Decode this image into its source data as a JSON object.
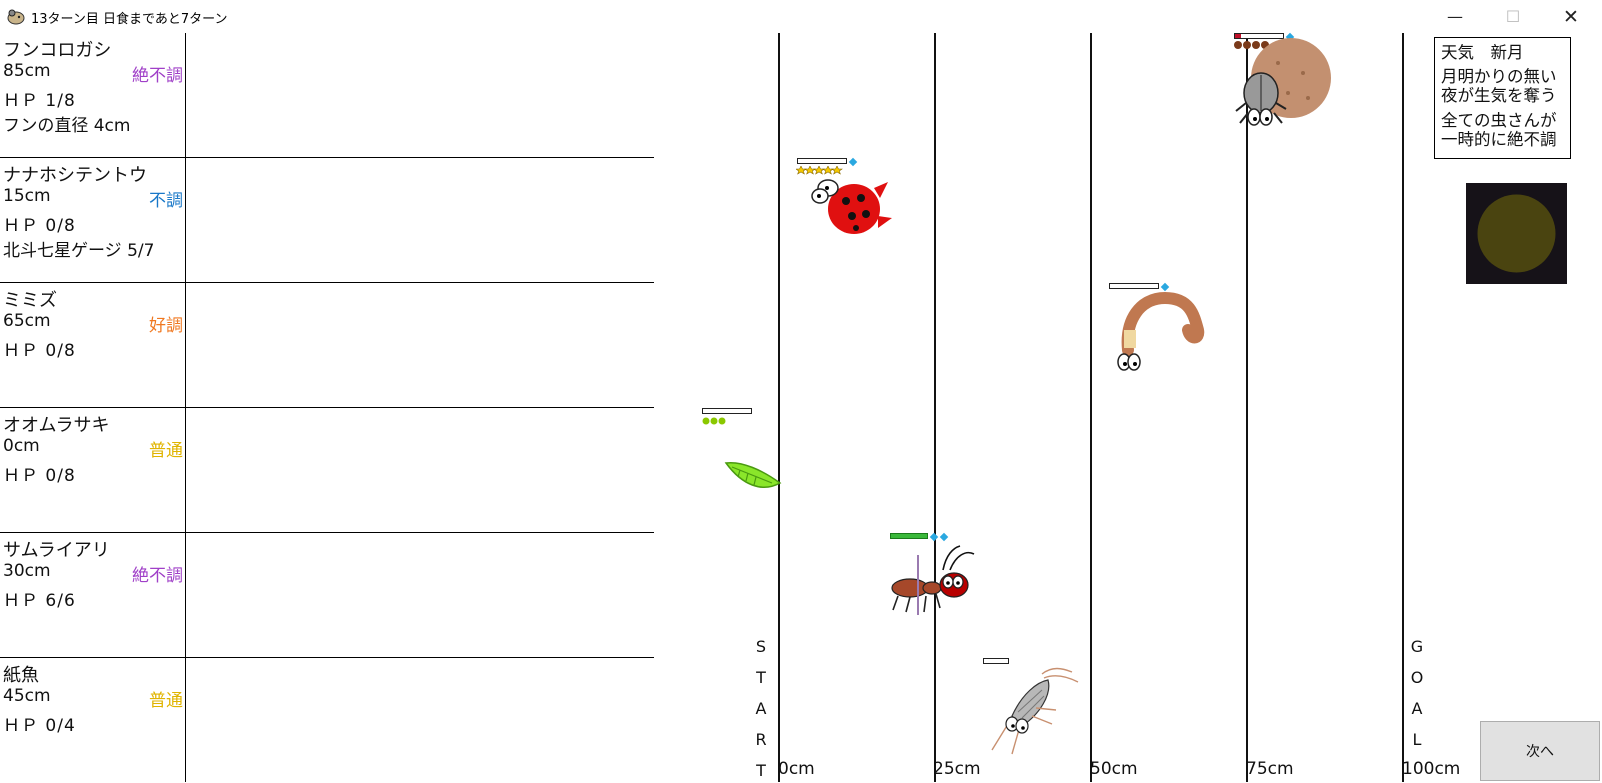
{
  "window": {
    "title": "13ターン目 日食まであと7ターン",
    "minimize": "—",
    "maximize": "☐",
    "close": "✕"
  },
  "bugs": [
    {
      "name": "フンコロガシ",
      "distance": "85cm",
      "condition": "絶不調",
      "condition_color": "#a040c8",
      "hp": "ＨＰ 1/8",
      "extra": "フンの直径 4cm"
    },
    {
      "name": "ナナホシテントウ",
      "distance": "15cm",
      "condition": "不調",
      "condition_color": "#1a78c8",
      "hp": "ＨＰ 0/8",
      "extra": "北斗七星ゲージ 5/7"
    },
    {
      "name": "ミミズ",
      "distance": "65cm",
      "condition": "好調",
      "condition_color": "#f07820",
      "hp": "ＨＰ 0/8",
      "extra": ""
    },
    {
      "name": "オオムラサキ",
      "distance": "0cm",
      "condition": "普通",
      "condition_color": "#e0b400",
      "hp": "ＨＰ 0/8",
      "extra": ""
    },
    {
      "name": "サムライアリ",
      "distance": "30cm",
      "condition": "絶不調",
      "condition_color": "#a040c8",
      "hp": "ＨＰ 6/6",
      "extra": ""
    },
    {
      "name": "紙魚",
      "distance": "45cm",
      "condition": "普通",
      "condition_color": "#e0b400",
      "hp": "ＨＰ 0/4",
      "extra": ""
    }
  ],
  "track": {
    "marks": [
      "0cm",
      "25cm",
      "50cm",
      "75cm",
      "100cm"
    ],
    "start_letters": [
      "S",
      "T",
      "A",
      "R",
      "T"
    ],
    "goal_letters": [
      "G",
      "O",
      "A",
      "L"
    ]
  },
  "weather": {
    "line1": "天気　新月",
    "line2": "月明かりの無い",
    "line3": "夜が生気を奪う",
    "line4": "全ての虫さんが",
    "line5": "一時的に絶不調",
    "moon_color": "#4a4410"
  },
  "next_button": "次へ",
  "racers": [
    {
      "name": "フンコロガシ",
      "hp_fraction": 0.125,
      "gems": 1
    },
    {
      "name": "ナナホシテントウ",
      "hp_fraction": 0,
      "gems": 1
    },
    {
      "name": "ミミズ",
      "hp_fraction": 0,
      "gems": 1
    },
    {
      "name": "オオムラサキ",
      "hp_fraction": 0,
      "gems": 0
    },
    {
      "name": "サムライアリ",
      "hp_fraction": 1,
      "gems": 2
    },
    {
      "name": "紙魚",
      "hp_fraction": 0,
      "gems": 0
    }
  ]
}
